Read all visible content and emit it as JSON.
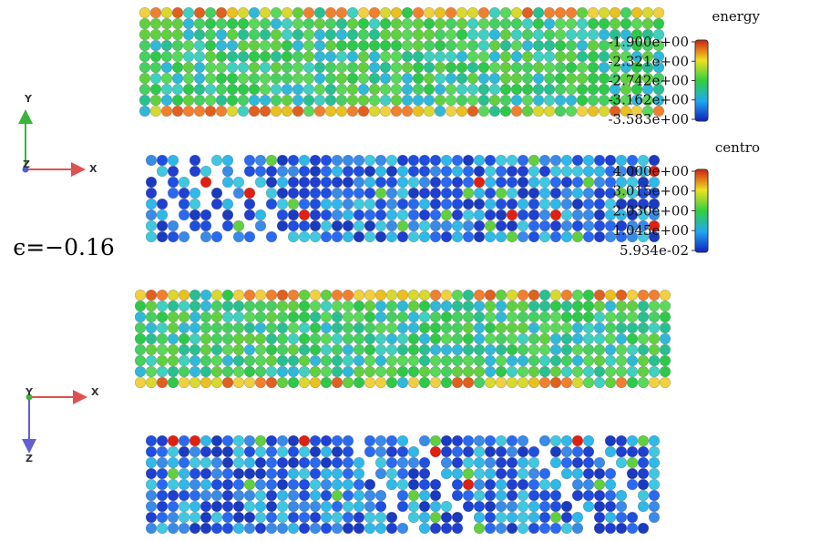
{
  "strain_label": "ϵ=−0.16",
  "triads": [
    {
      "x": "X",
      "y": "Y",
      "z": "Z"
    },
    {
      "x": "X",
      "y": "Y",
      "z": "Z"
    }
  ],
  "colorbars": [
    {
      "title": "energy",
      "ticks": [
        {
          "value": -1.9,
          "label": "-1.900e+00"
        },
        {
          "value": -2.321,
          "label": "-2.321e+00"
        },
        {
          "value": -2.742,
          "label": "-2.742e+00"
        },
        {
          "value": -3.162,
          "label": "-3.162e+00"
        },
        {
          "value": -3.583,
          "label": "-3.583e+00"
        }
      ]
    },
    {
      "title": "centro",
      "ticks": [
        {
          "value": 4.0,
          "label": "4.000e+00"
        },
        {
          "value": 3.015,
          "label": "3.015e+00"
        },
        {
          "value": 2.03,
          "label": "2.030e+00"
        },
        {
          "value": 1.045,
          "label": "1.045e+00"
        },
        {
          "value": 0.05934,
          "label": "5.934e-02"
        }
      ]
    }
  ]
}
